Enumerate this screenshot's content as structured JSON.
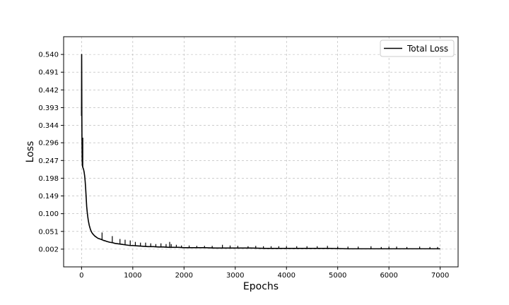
{
  "chart_data": {
    "type": "line",
    "title": "",
    "xlabel": "Epochs",
    "ylabel": "Loss",
    "xlim": [
      -350,
      7350
    ],
    "ylim": [
      -0.047,
      0.589
    ],
    "xticks": [
      0,
      1000,
      2000,
      3000,
      4000,
      5000,
      6000,
      7000
    ],
    "yticks": [
      0.002,
      0.051,
      0.1,
      0.149,
      0.198,
      0.247,
      0.296,
      0.344,
      0.393,
      0.442,
      0.491,
      0.54
    ],
    "xtick_labels": [
      "0",
      "1000",
      "2000",
      "3000",
      "4000",
      "5000",
      "6000",
      "7000"
    ],
    "ytick_labels": [
      "0.002",
      "0.051",
      "0.100",
      "0.149",
      "0.198",
      "0.247",
      "0.296",
      "0.344",
      "0.393",
      "0.442",
      "0.491",
      "0.540"
    ],
    "grid": true,
    "legend_position": "top-right",
    "series": [
      {
        "name": "Total Loss",
        "color": "#000000",
        "x": [
          0,
          2,
          4,
          6,
          8,
          10,
          12,
          14,
          16,
          20,
          25,
          30,
          40,
          50,
          60,
          70,
          80,
          90,
          100,
          110,
          120,
          130,
          140,
          150,
          160,
          170,
          180,
          190,
          200,
          220,
          240,
          260,
          280,
          300,
          320,
          340,
          360,
          380,
          400,
          430,
          460,
          500,
          550,
          600,
          650,
          700,
          750,
          800,
          850,
          900,
          950,
          1000,
          1100,
          1200,
          1300,
          1400,
          1500,
          1600,
          1700,
          1800,
          1900,
          2000,
          2200,
          2400,
          2600,
          2800,
          3000,
          3300,
          3600,
          4000,
          4400,
          4800,
          5200,
          5600,
          6000,
          6400,
          6800,
          7000
        ],
        "values": [
          0.37,
          0.54,
          0.45,
          0.36,
          0.31,
          0.28,
          0.25,
          0.24,
          0.235,
          0.23,
          0.228,
          0.226,
          0.222,
          0.215,
          0.205,
          0.19,
          0.17,
          0.145,
          0.12,
          0.105,
          0.093,
          0.083,
          0.075,
          0.068,
          0.063,
          0.058,
          0.054,
          0.051,
          0.048,
          0.044,
          0.041,
          0.038,
          0.036,
          0.034,
          0.032,
          0.031,
          0.03,
          0.029,
          0.028,
          0.026,
          0.025,
          0.023,
          0.021,
          0.02,
          0.018,
          0.017,
          0.016,
          0.015,
          0.014,
          0.013,
          0.012,
          0.012,
          0.011,
          0.01,
          0.009,
          0.009,
          0.008,
          0.008,
          0.007,
          0.007,
          0.007,
          0.006,
          0.006,
          0.006,
          0.005,
          0.005,
          0.005,
          0.005,
          0.004,
          0.004,
          0.004,
          0.004,
          0.003,
          0.003,
          0.003,
          0.003,
          0.003,
          0.003
        ],
        "spikes": [
          [
            25,
            0.31
          ],
          [
            400,
            0.048
          ],
          [
            600,
            0.038
          ],
          [
            750,
            0.03
          ],
          [
            850,
            0.028
          ],
          [
            950,
            0.026
          ],
          [
            1050,
            0.022
          ],
          [
            1150,
            0.02
          ],
          [
            1250,
            0.02
          ],
          [
            1350,
            0.018
          ],
          [
            1450,
            0.016
          ],
          [
            1550,
            0.018
          ],
          [
            1650,
            0.016
          ],
          [
            1720,
            0.022
          ],
          [
            1750,
            0.016
          ],
          [
            1850,
            0.014
          ],
          [
            1950,
            0.012
          ],
          [
            2100,
            0.012
          ],
          [
            2250,
            0.011
          ],
          [
            2400,
            0.011
          ],
          [
            2550,
            0.011
          ],
          [
            2750,
            0.014
          ],
          [
            2900,
            0.012
          ],
          [
            3050,
            0.011
          ],
          [
            3250,
            0.01
          ],
          [
            3400,
            0.011
          ],
          [
            3550,
            0.01
          ],
          [
            3700,
            0.01
          ],
          [
            3850,
            0.01
          ],
          [
            4000,
            0.01
          ],
          [
            4200,
            0.01
          ],
          [
            4400,
            0.01
          ],
          [
            4600,
            0.01
          ],
          [
            4800,
            0.011
          ],
          [
            5000,
            0.009
          ],
          [
            5200,
            0.009
          ],
          [
            5400,
            0.009
          ],
          [
            5650,
            0.01
          ],
          [
            5850,
            0.008
          ],
          [
            6000,
            0.009
          ],
          [
            6150,
            0.009
          ],
          [
            6350,
            0.008
          ],
          [
            6600,
            0.009
          ],
          [
            6800,
            0.008
          ],
          [
            6950,
            0.008
          ]
        ]
      }
    ]
  }
}
